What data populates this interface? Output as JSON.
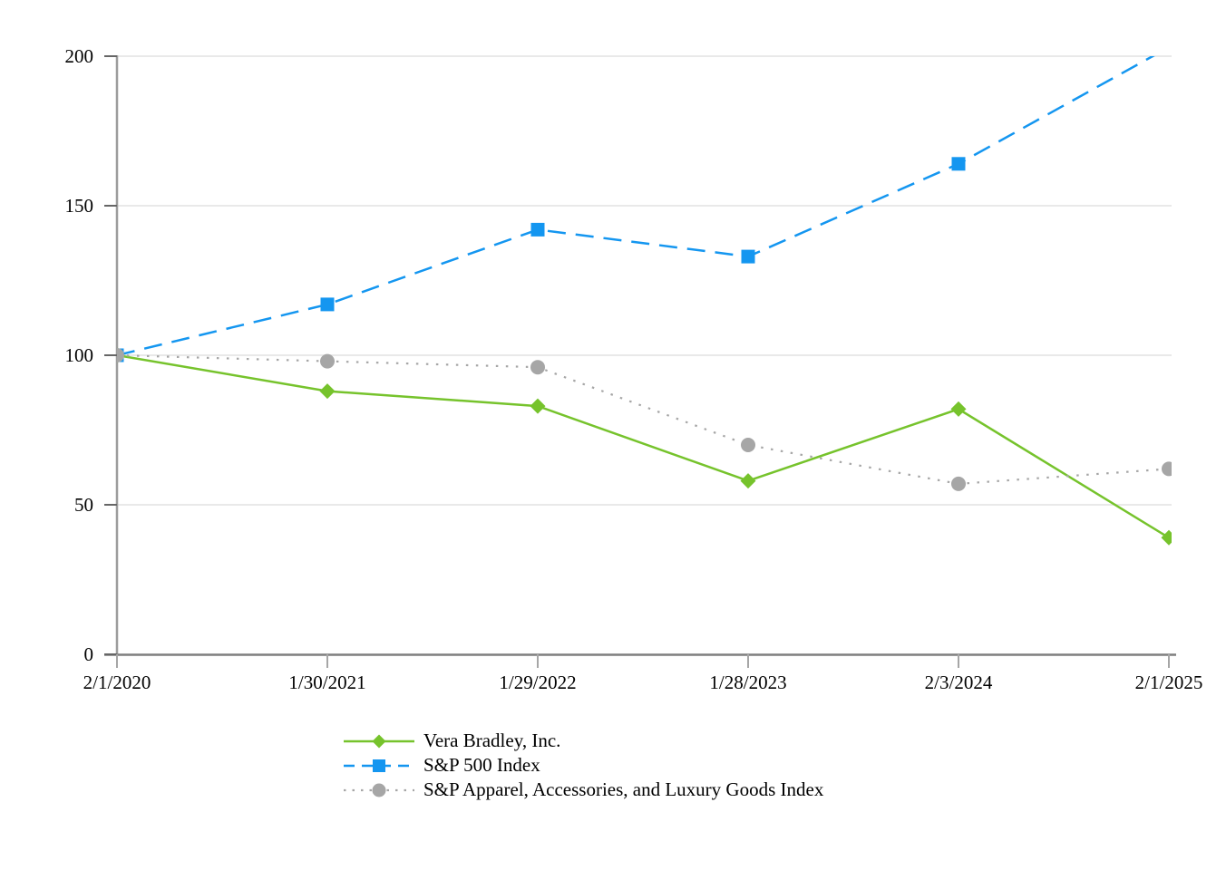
{
  "chart_data": {
    "type": "line",
    "title": "",
    "xlabel": "",
    "ylabel": "",
    "x_labels": [
      "2/1/2020",
      "1/30/2021",
      "1/29/2022",
      "1/28/2023",
      "2/3/2024",
      "2/1/2025"
    ],
    "y_ticks": [
      0,
      50,
      100,
      150,
      200
    ],
    "y_tick_labels": [
      "0",
      "50",
      "100",
      "150",
      "200"
    ],
    "ylim": [
      0,
      200
    ],
    "grid": "horizontal-light",
    "legend_position": "bottom-left",
    "series": [
      {
        "name": "Vera Bradley, Inc.",
        "color": "#76C32C",
        "line_style": "solid",
        "marker": "diamond",
        "values": [
          100,
          88,
          83,
          58,
          82,
          39
        ]
      },
      {
        "name": "S&P 500 Index",
        "color": "#1496F0",
        "line_style": "dashed",
        "marker": "square",
        "values": [
          100,
          117,
          142,
          133,
          164,
          203
        ]
      },
      {
        "name": "S&P Apparel, Accessories, and Luxury Goods Index",
        "color": "#A6A6A6",
        "line_style": "dotted",
        "marker": "circle",
        "values": [
          100,
          98,
          96,
          70,
          57,
          62
        ]
      }
    ]
  },
  "colors": {
    "gridline": "#E2E2E2",
    "y_axis_line": "#9C9C9C",
    "x_axis_line": "#7F7F7F",
    "y_tick": "#666666",
    "x_tick": "#A6A6A6",
    "text": "#000000",
    "background": "#FFFFFF"
  }
}
